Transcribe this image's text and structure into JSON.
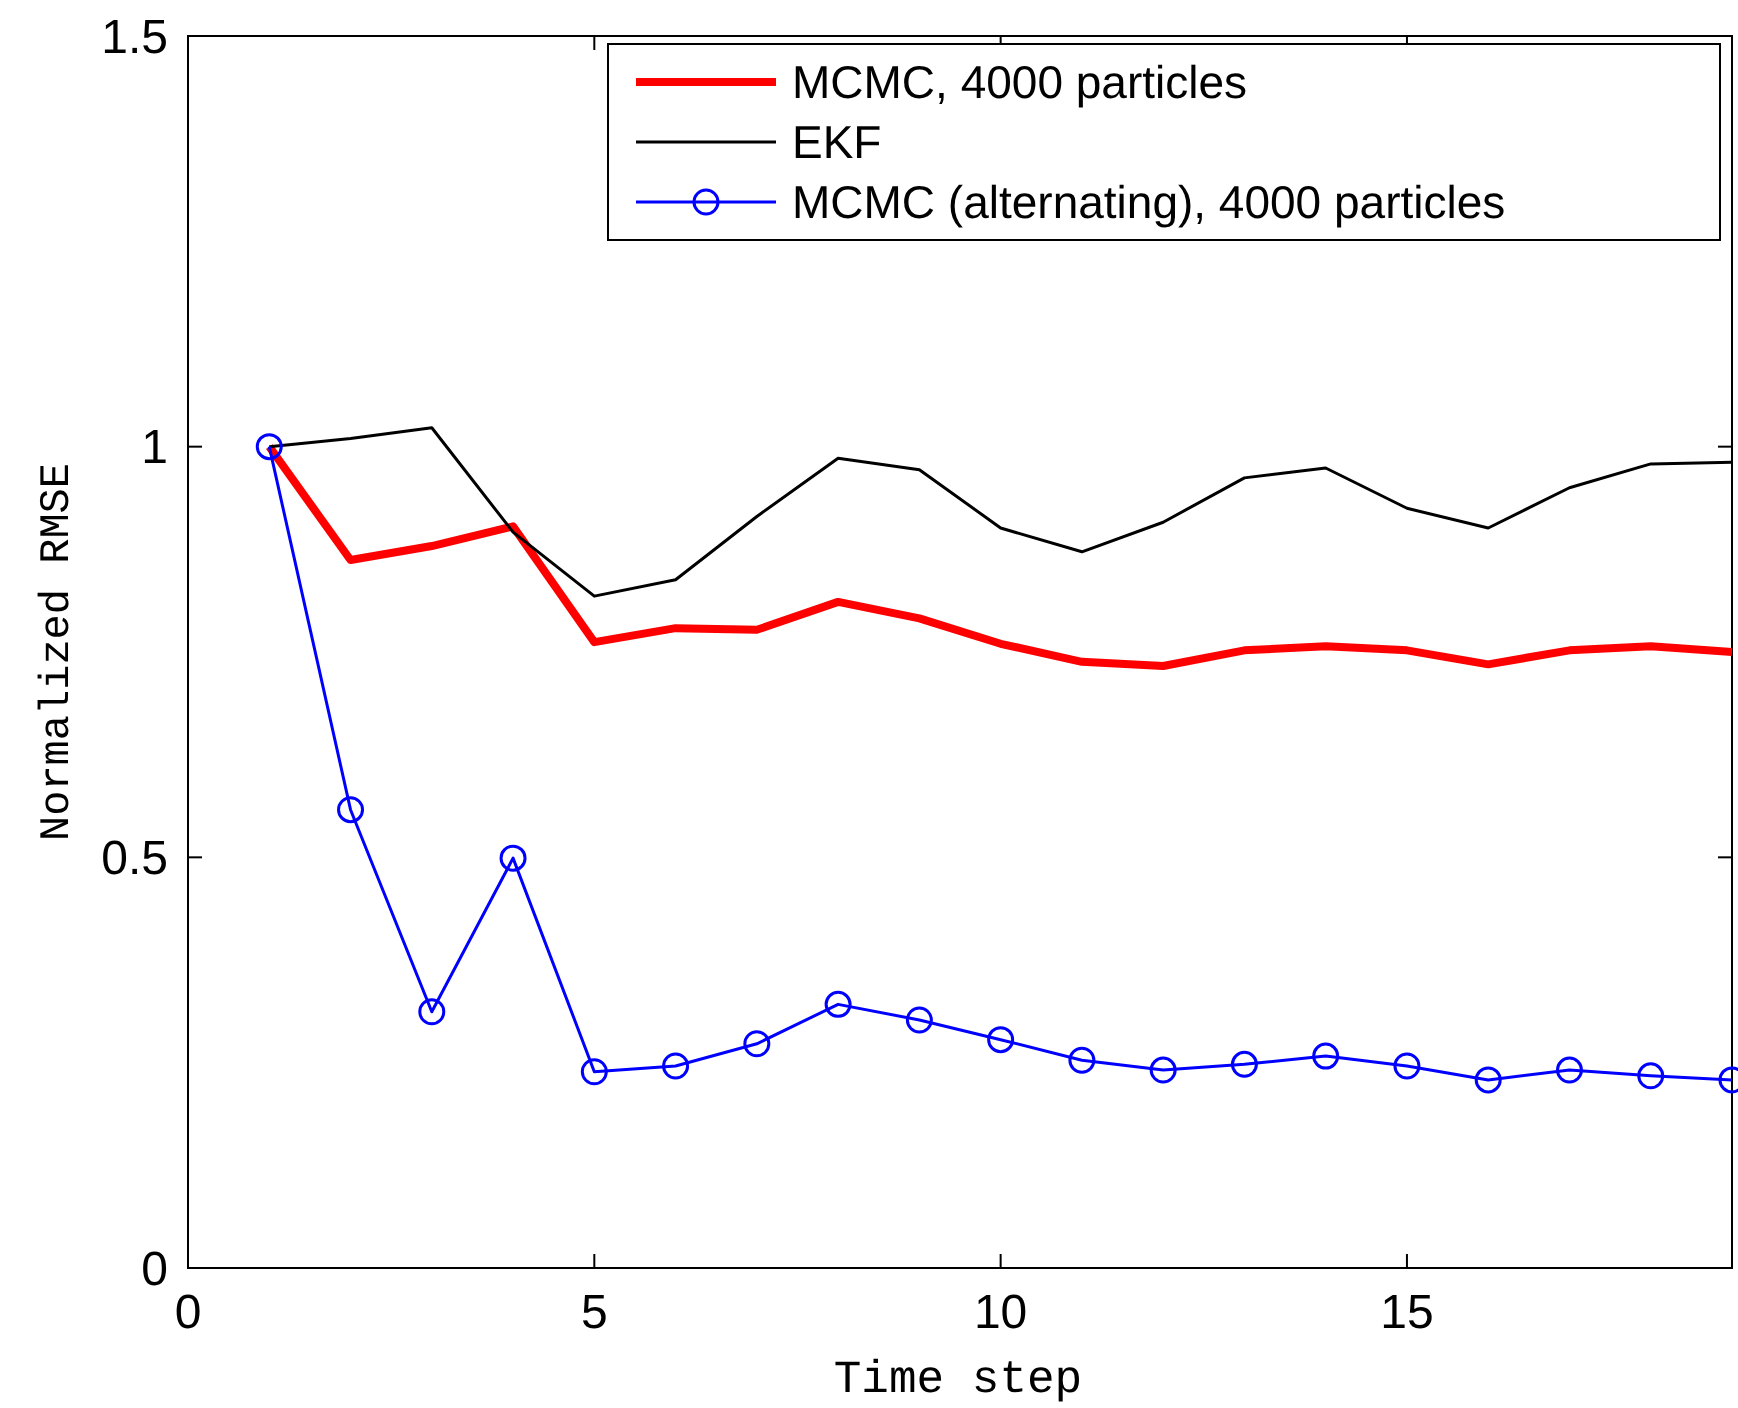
{
  "chart_data": {
    "type": "line",
    "xlabel": "Time step",
    "ylabel": "Normalized RMSE",
    "x": [
      1,
      2,
      3,
      4,
      5,
      6,
      7,
      8,
      9,
      10,
      11,
      12,
      13,
      14,
      15,
      16,
      17,
      18,
      19
    ],
    "xlim": [
      0,
      19
    ],
    "xticks": [
      0,
      5,
      10,
      15
    ],
    "ylim": [
      0,
      1.5
    ],
    "yticks": [
      0,
      0.5,
      1,
      1.5
    ],
    "grid": false,
    "legend": "top right",
    "series": [
      {
        "name": "MCMC, 4000 particles",
        "color": "#ff0000",
        "line_style": "solid",
        "marker": "none",
        "values": [
          1.0,
          0.862,
          0.879,
          0.903,
          0.762,
          0.779,
          0.777,
          0.811,
          0.791,
          0.76,
          0.738,
          0.733,
          0.752,
          0.757,
          0.752,
          0.735,
          0.752,
          0.757,
          0.75
        ]
      },
      {
        "name": "EKF",
        "color": "#000000",
        "line_style": "solid",
        "marker": "none",
        "values": [
          1.0,
          1.01,
          1.023,
          0.896,
          0.818,
          0.838,
          0.915,
          0.986,
          0.972,
          0.901,
          0.872,
          0.908,
          0.962,
          0.974,
          0.925,
          0.901,
          0.95,
          0.979,
          0.981
        ]
      },
      {
        "name": "MCMC (alternating), 4000 particles",
        "color": "#0000ff",
        "line_style": "solid",
        "marker": "circle",
        "values": [
          1.0,
          0.558,
          0.312,
          0.499,
          0.239,
          0.246,
          0.273,
          0.321,
          0.302,
          0.278,
          0.253,
          0.241,
          0.248,
          0.258,
          0.246,
          0.229,
          0.241,
          0.234,
          0.229
        ]
      }
    ]
  }
}
